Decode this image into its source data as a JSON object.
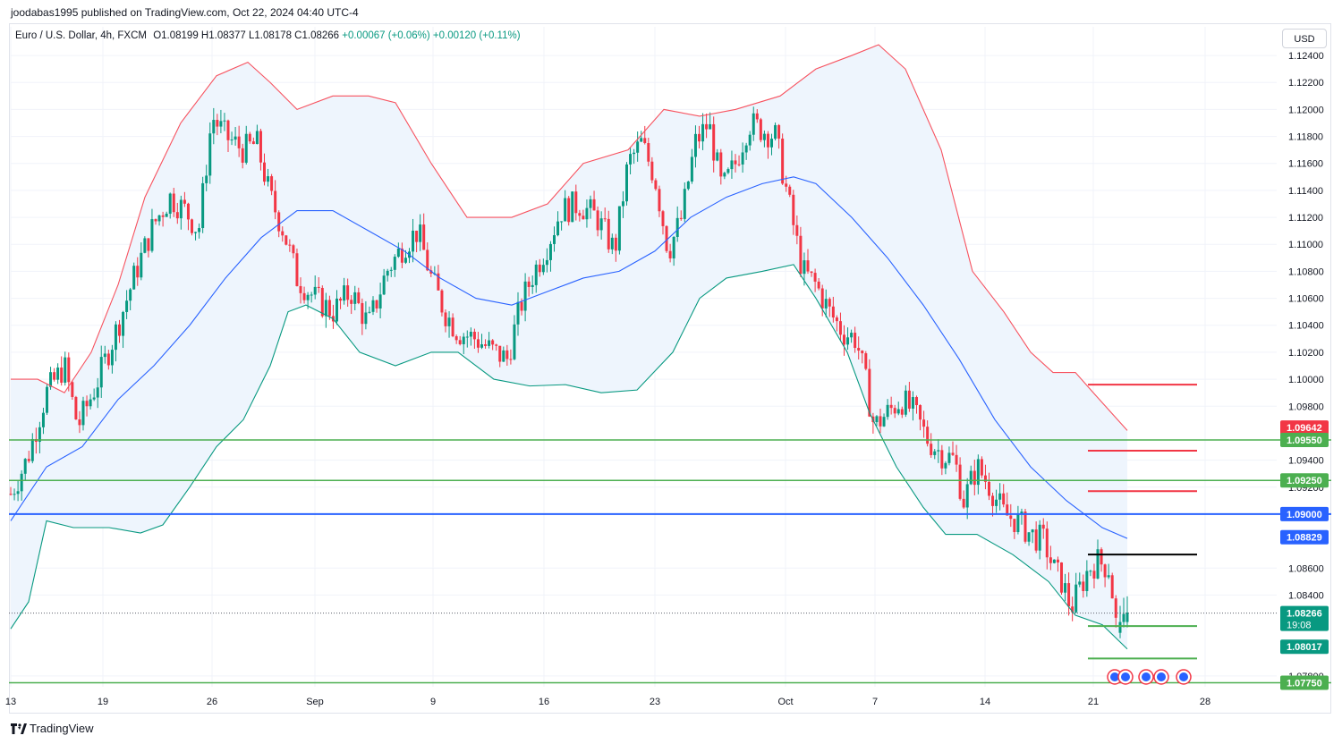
{
  "header": {
    "publisher": "joodabas1995 published on TradingView.com, Oct 22, 2024 04:40 UTC-4"
  },
  "legend": {
    "symbol": "Euro / U.S. Dollar, 4h, FXCM",
    "open": "O1.08199",
    "high": "H1.08377",
    "low": "L1.08178",
    "close": "C1.08266",
    "change": "+0.00067 (+0.06%)",
    "change2": "+0.00120 (+0.11%)"
  },
  "currency_button": "USD",
  "footer": {
    "brand": "TradingView"
  },
  "colors": {
    "up": "#089981",
    "down": "#f23645",
    "upper_band": "#f7525f",
    "basis": "#2962ff",
    "lower_band": "#089981",
    "band_fill": "#eef5fd",
    "green_level": "#4caf50",
    "blue_level": "#2962ff",
    "red_level": "#f23645",
    "black_level": "#000000"
  },
  "chart_data": {
    "type": "candlestick",
    "y_axis": {
      "range": [
        1.0772,
        1.1248
      ],
      "ticks": [
        "1.12400",
        "1.12200",
        "1.12000",
        "1.11800",
        "1.11600",
        "1.11400",
        "1.11200",
        "1.11000",
        "1.10800",
        "1.10600",
        "1.10400",
        "1.10200",
        "1.10000",
        "1.09800",
        "1.09400",
        "1.09200",
        "1.08600",
        "1.08400",
        "1.07800"
      ]
    },
    "x_axis": {
      "labels": [
        "13",
        "19",
        "26",
        "Sep",
        "9",
        "16",
        "23",
        "Oct",
        "7",
        "14",
        "21",
        "28"
      ]
    },
    "price_tags": [
      {
        "label": "1.09642",
        "color": "#f23645"
      },
      {
        "label": "1.09550",
        "color": "#4caf50"
      },
      {
        "label": "1.09250",
        "color": "#4caf50"
      },
      {
        "label": "1.09000",
        "color": "#2962ff"
      },
      {
        "label": "1.08829",
        "color": "#2962ff"
      },
      {
        "label": "1.08266",
        "sub": "19:08",
        "color": "#089981"
      },
      {
        "label": "1.08017",
        "color": "#089981"
      },
      {
        "label": "1.07750",
        "color": "#4caf50"
      }
    ],
    "horizontal_lines": [
      {
        "price": 1.0955,
        "color": "#4caf50",
        "span": "full"
      },
      {
        "price": 1.0925,
        "color": "#4caf50",
        "span": "full"
      },
      {
        "price": 1.09,
        "color": "#2962ff",
        "span": "full"
      },
      {
        "price": 1.0775,
        "color": "#4caf50",
        "span": "full"
      }
    ],
    "segments": [
      {
        "price": 1.0996,
        "color": "#f23645",
        "from": "Oct 21",
        "to": "Oct 26"
      },
      {
        "price": 1.0947,
        "color": "#f23645",
        "from": "Oct 21",
        "to": "Oct 26"
      },
      {
        "price": 1.0917,
        "color": "#f23645",
        "from": "Oct 21",
        "to": "Oct 26"
      },
      {
        "price": 1.087,
        "color": "#000000",
        "from": "Oct 21",
        "to": "Oct 26"
      },
      {
        "price": 1.0817,
        "color": "#4caf50",
        "from": "Oct 21",
        "to": "Oct 26"
      },
      {
        "price": 1.0793,
        "color": "#4caf50",
        "from": "Oct 21",
        "to": "Oct 26"
      }
    ],
    "last_price": 1.08266,
    "path_points": [
      [
        0,
        1.0915
      ],
      [
        18,
        1.094
      ],
      [
        40,
        1.099
      ],
      [
        60,
        1.101
      ],
      [
        75,
        1.0965
      ],
      [
        95,
        1.0995
      ],
      [
        120,
        1.104
      ],
      [
        140,
        1.108
      ],
      [
        160,
        1.1115
      ],
      [
        178,
        1.1135
      ],
      [
        195,
        1.1125
      ],
      [
        210,
        1.111
      ],
      [
        225,
        1.1195
      ],
      [
        240,
        1.118
      ],
      [
        260,
        1.117
      ],
      [
        275,
        1.1175
      ],
      [
        290,
        1.1135
      ],
      [
        305,
        1.111
      ],
      [
        320,
        1.1075
      ],
      [
        340,
        1.106
      ],
      [
        360,
        1.105
      ],
      [
        380,
        1.1065
      ],
      [
        400,
        1.104
      ],
      [
        420,
        1.108
      ],
      [
        440,
        1.11
      ],
      [
        455,
        1.111
      ],
      [
        470,
        1.1075
      ],
      [
        485,
        1.105
      ],
      [
        500,
        1.1035
      ],
      [
        520,
        1.103
      ],
      [
        540,
        1.102
      ],
      [
        555,
        1.1015
      ],
      [
        570,
        1.1055
      ],
      [
        585,
        1.108
      ],
      [
        600,
        1.11
      ],
      [
        615,
        1.1125
      ],
      [
        635,
        1.113
      ],
      [
        655,
        1.112
      ],
      [
        675,
        1.1095
      ],
      [
        690,
        1.116
      ],
      [
        705,
        1.1175
      ],
      [
        720,
        1.115
      ],
      [
        735,
        1.1095
      ],
      [
        750,
        1.112
      ],
      [
        765,
        1.1175
      ],
      [
        780,
        1.119
      ],
      [
        795,
        1.114
      ],
      [
        810,
        1.116
      ],
      [
        825,
        1.119
      ],
      [
        840,
        1.1185
      ],
      [
        855,
        1.118
      ],
      [
        870,
        1.113
      ],
      [
        885,
        1.108
      ],
      [
        900,
        1.107
      ],
      [
        915,
        1.105
      ],
      [
        930,
        1.1035
      ],
      [
        945,
        1.103
      ],
      [
        955,
        1.1
      ],
      [
        965,
        1.0965
      ],
      [
        980,
        1.0975
      ],
      [
        995,
        1.0985
      ],
      [
        1010,
        1.0975
      ],
      [
        1025,
        1.0955
      ],
      [
        1040,
        1.0945
      ],
      [
        1055,
        1.094
      ],
      [
        1065,
        1.091
      ],
      [
        1080,
        1.0935
      ],
      [
        1095,
        1.092
      ],
      [
        1110,
        1.09
      ],
      [
        1125,
        1.0895
      ],
      [
        1140,
        1.0885
      ],
      [
        1155,
        1.088
      ],
      [
        1165,
        1.086
      ],
      [
        1175,
        1.085
      ],
      [
        1185,
        1.083
      ],
      [
        1195,
        1.0845
      ],
      [
        1205,
        1.086
      ],
      [
        1215,
        1.0865
      ],
      [
        1228,
        1.086
      ],
      [
        1236,
        1.0815
      ],
      [
        1248,
        1.0827
      ]
    ],
    "bb_upper": [
      [
        0,
        1.1
      ],
      [
        30,
        1.1
      ],
      [
        60,
        1.099
      ],
      [
        90,
        1.102
      ],
      [
        120,
        1.107
      ],
      [
        150,
        1.1135
      ],
      [
        190,
        1.119
      ],
      [
        230,
        1.1225
      ],
      [
        265,
        1.1235
      ],
      [
        290,
        1.122
      ],
      [
        320,
        1.12
      ],
      [
        360,
        1.121
      ],
      [
        400,
        1.121
      ],
      [
        430,
        1.1205
      ],
      [
        470,
        1.116
      ],
      [
        510,
        1.112
      ],
      [
        560,
        1.112
      ],
      [
        600,
        1.113
      ],
      [
        640,
        1.116
      ],
      [
        690,
        1.117
      ],
      [
        730,
        1.12
      ],
      [
        770,
        1.1195
      ],
      [
        810,
        1.12
      ],
      [
        860,
        1.121
      ],
      [
        900,
        1.123
      ],
      [
        940,
        1.124
      ],
      [
        970,
        1.1248
      ],
      [
        1000,
        1.123
      ],
      [
        1040,
        1.117
      ],
      [
        1075,
        1.108
      ],
      [
        1110,
        1.105
      ],
      [
        1140,
        1.102
      ],
      [
        1165,
        1.1005
      ],
      [
        1190,
        1.1005
      ],
      [
        1210,
        1.099
      ],
      [
        1248,
        1.0962
      ]
    ],
    "bb_basis": [
      [
        0,
        1.0895
      ],
      [
        40,
        1.0935
      ],
      [
        80,
        1.095
      ],
      [
        120,
        1.0985
      ],
      [
        160,
        1.101
      ],
      [
        200,
        1.104
      ],
      [
        240,
        1.1075
      ],
      [
        280,
        1.1105
      ],
      [
        320,
        1.1125
      ],
      [
        360,
        1.1125
      ],
      [
        400,
        1.111
      ],
      [
        440,
        1.1095
      ],
      [
        480,
        1.1075
      ],
      [
        520,
        1.106
      ],
      [
        560,
        1.1055
      ],
      [
        600,
        1.1065
      ],
      [
        640,
        1.1075
      ],
      [
        680,
        1.108
      ],
      [
        720,
        1.1095
      ],
      [
        760,
        1.112
      ],
      [
        800,
        1.1135
      ],
      [
        840,
        1.1145
      ],
      [
        875,
        1.115
      ],
      [
        900,
        1.1145
      ],
      [
        940,
        1.112
      ],
      [
        980,
        1.109
      ],
      [
        1020,
        1.1055
      ],
      [
        1060,
        1.1015
      ],
      [
        1100,
        1.097
      ],
      [
        1140,
        1.0935
      ],
      [
        1180,
        1.091
      ],
      [
        1220,
        1.089
      ],
      [
        1248,
        1.0882
      ]
    ],
    "bb_lower": [
      [
        0,
        1.0815
      ],
      [
        20,
        1.0835
      ],
      [
        40,
        1.0895
      ],
      [
        70,
        1.089
      ],
      [
        110,
        1.089
      ],
      [
        145,
        1.0886
      ],
      [
        170,
        1.0892
      ],
      [
        200,
        1.092
      ],
      [
        230,
        1.095
      ],
      [
        260,
        1.097
      ],
      [
        290,
        1.101
      ],
      [
        310,
        1.105
      ],
      [
        330,
        1.1055
      ],
      [
        360,
        1.1045
      ],
      [
        390,
        1.102
      ],
      [
        430,
        1.101
      ],
      [
        470,
        1.102
      ],
      [
        500,
        1.102
      ],
      [
        540,
        1.1
      ],
      [
        580,
        1.0995
      ],
      [
        620,
        1.0996
      ],
      [
        660,
        1.099
      ],
      [
        700,
        1.0992
      ],
      [
        740,
        1.102
      ],
      [
        770,
        1.106
      ],
      [
        800,
        1.1075
      ],
      [
        840,
        1.108
      ],
      [
        875,
        1.1085
      ],
      [
        900,
        1.106
      ],
      [
        935,
        1.102
      ],
      [
        960,
        1.0975
      ],
      [
        990,
        1.0935
      ],
      [
        1020,
        1.0905
      ],
      [
        1045,
        1.0885
      ],
      [
        1080,
        1.0885
      ],
      [
        1120,
        1.087
      ],
      [
        1160,
        1.085
      ],
      [
        1190,
        1.0825
      ],
      [
        1220,
        1.0818
      ],
      [
        1248,
        1.08
      ]
    ]
  }
}
